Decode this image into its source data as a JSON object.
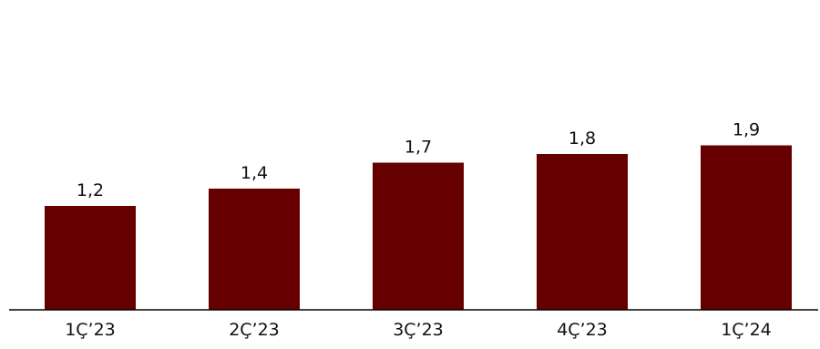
{
  "chart_data": {
    "type": "bar",
    "categories": [
      "1Ç’23",
      "2Ç’23",
      "3Ç’23",
      "4Ç’23",
      "1Ç’24"
    ],
    "values": [
      1.2,
      1.4,
      1.7,
      1.8,
      1.9
    ],
    "value_labels": [
      "1,2",
      "1,4",
      "1,7",
      "1,8",
      "1,9"
    ],
    "title": "",
    "xlabel": "",
    "ylabel": "",
    "ylim": [
      0,
      2.35
    ],
    "grid": false,
    "legend": "none",
    "bar_color": "#660000",
    "axis_color": "#000000"
  }
}
